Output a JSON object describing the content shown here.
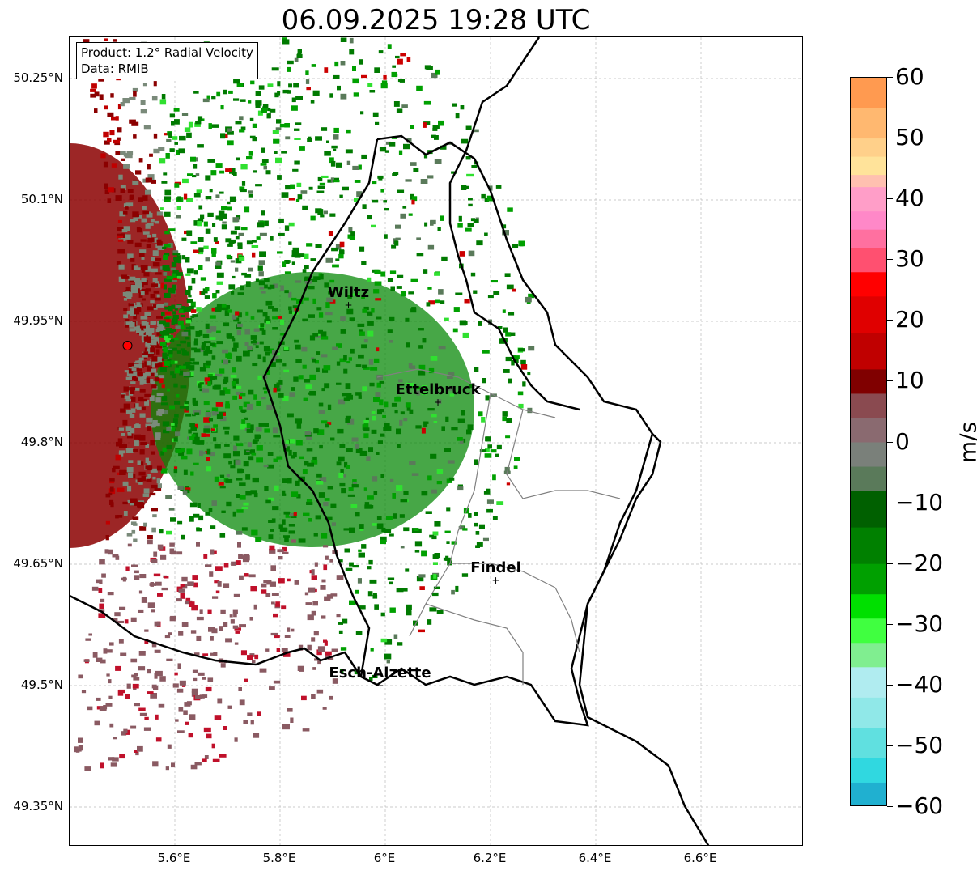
{
  "title": "06.09.2025 19:28 UTC",
  "info": {
    "product": "Product: 1.2° Radial Velocity",
    "data": "Data: RMIB"
  },
  "axes": {
    "lat_ticks": [
      "50.25°N",
      "50.1°N",
      "49.95°N",
      "49.8°N",
      "49.65°N",
      "49.5°N",
      "49.35°N"
    ],
    "lon_ticks": [
      "5.6°E",
      "5.8°E",
      "6°E",
      "6.2°E",
      "6.4°E",
      "6.6°E"
    ],
    "grid": true
  },
  "places": [
    {
      "name": "Wiltz",
      "lon": 5.93,
      "lat": 49.97
    },
    {
      "name": "Ettelbruck",
      "lon": 6.1,
      "lat": 49.85
    },
    {
      "name": "Findel",
      "lon": 6.21,
      "lat": 49.63
    },
    {
      "name": "Esch-Alzette",
      "lon": 5.99,
      "lat": 49.5
    }
  ],
  "radar_site": {
    "lon": 5.51,
    "lat": 49.92,
    "color": "#ff0000"
  },
  "colorbar": {
    "label": "m/s",
    "min": -60,
    "max": 60,
    "ticks": [
      "60",
      "50",
      "40",
      "30",
      "20",
      "10",
      "0",
      "−10",
      "−20",
      "−30",
      "−40",
      "−50",
      "−60"
    ]
  },
  "colors": {
    "outbound_red": "#8b0000",
    "inbound_green": "#008000",
    "near_zero": "#8a6a70",
    "border": "#000000"
  }
}
